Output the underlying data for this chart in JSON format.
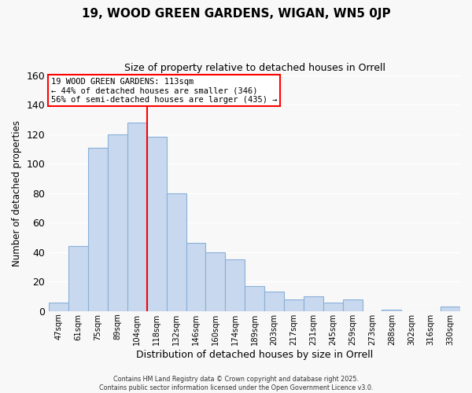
{
  "title": "19, WOOD GREEN GARDENS, WIGAN, WN5 0JP",
  "subtitle": "Size of property relative to detached houses in Orrell",
  "xlabel": "Distribution of detached houses by size in Orrell",
  "ylabel": "Number of detached properties",
  "bar_labels": [
    "47sqm",
    "61sqm",
    "75sqm",
    "89sqm",
    "104sqm",
    "118sqm",
    "132sqm",
    "146sqm",
    "160sqm",
    "174sqm",
    "189sqm",
    "203sqm",
    "217sqm",
    "231sqm",
    "245sqm",
    "259sqm",
    "273sqm",
    "288sqm",
    "302sqm",
    "316sqm",
    "330sqm"
  ],
  "bar_values": [
    6,
    44,
    111,
    120,
    128,
    118,
    80,
    46,
    40,
    35,
    17,
    13,
    8,
    10,
    6,
    8,
    0,
    1,
    0,
    0,
    3
  ],
  "bar_color": "#c8d8ee",
  "bar_edge_color": "#8ab0d8",
  "vline_x": 4.5,
  "vline_color": "red",
  "annotation_lines": [
    "19 WOOD GREEN GARDENS: 113sqm",
    "← 44% of detached houses are smaller (346)",
    "56% of semi-detached houses are larger (435) →"
  ],
  "ylim": [
    0,
    160
  ],
  "yticks": [
    0,
    20,
    40,
    60,
    80,
    100,
    120,
    140,
    160
  ],
  "footer_line1": "Contains HM Land Registry data © Crown copyright and database right 2025.",
  "footer_line2": "Contains public sector information licensed under the Open Government Licence v3.0.",
  "bg_color": "#f8f8f8",
  "plot_bg_color": "#f8f8f8",
  "grid_color": "#ffffff"
}
